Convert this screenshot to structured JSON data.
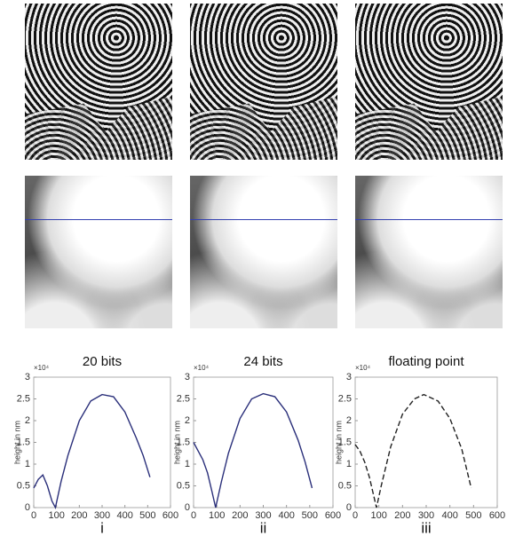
{
  "chart_data": [
    {
      "type": "line",
      "title": "20 bits",
      "caption": "i",
      "ylabel": "height in nm",
      "y_multiplier": "×10⁴",
      "x": [
        0,
        20,
        40,
        60,
        80,
        95,
        120,
        150,
        200,
        250,
        300,
        350,
        400,
        450,
        480,
        510
      ],
      "series": [
        {
          "color": "#2a2f7a",
          "values": [
            0.45,
            0.65,
            0.75,
            0.5,
            0.15,
            0,
            0.6,
            1.2,
            2.0,
            2.45,
            2.6,
            2.55,
            2.2,
            1.6,
            1.2,
            0.7
          ]
        }
      ],
      "xlim": [
        0,
        600
      ],
      "xticks": [
        0,
        100,
        200,
        300,
        400,
        500,
        600
      ],
      "ylim": [
        0,
        3
      ],
      "yticks": [
        0,
        0.5,
        1,
        1.5,
        2,
        2.5,
        3
      ]
    },
    {
      "type": "line",
      "title": "24 bits",
      "caption": "ii",
      "ylabel": "height in nm",
      "y_multiplier": "×10⁴",
      "x": [
        0,
        20,
        40,
        60,
        80,
        95,
        120,
        150,
        200,
        250,
        300,
        350,
        400,
        450,
        480,
        510
      ],
      "series": [
        {
          "color": "#2a2f7a",
          "values": [
            1.5,
            1.3,
            1.1,
            0.8,
            0.35,
            0,
            0.6,
            1.25,
            2.05,
            2.5,
            2.62,
            2.55,
            2.2,
            1.55,
            1.05,
            0.45
          ]
        }
      ],
      "xlim": [
        0,
        600
      ],
      "xticks": [
        0,
        100,
        200,
        300,
        400,
        500,
        600
      ],
      "ylim": [
        0,
        3
      ],
      "yticks": [
        0,
        0.5,
        1,
        1.5,
        2,
        2.5,
        3
      ]
    },
    {
      "type": "line",
      "title": "floating point",
      "caption": "iii",
      "ylabel": "height in nm",
      "y_multiplier": "×10⁴",
      "x": [
        0,
        20,
        40,
        60,
        75,
        90,
        110,
        150,
        200,
        250,
        290,
        350,
        400,
        450,
        490
      ],
      "series": [
        {
          "color": "#222222",
          "line_style": "dashed",
          "values": [
            1.45,
            1.3,
            1.05,
            0.7,
            0.35,
            0,
            0.5,
            1.4,
            2.15,
            2.5,
            2.6,
            2.45,
            2.05,
            1.35,
            0.45
          ]
        }
      ],
      "xlim": [
        0,
        600
      ],
      "xticks": [
        0,
        100,
        200,
        300,
        400,
        500,
        600
      ],
      "ylim": [
        0,
        3
      ],
      "yticks": [
        0,
        0.5,
        1,
        1.5,
        2,
        2.5,
        3
      ]
    }
  ]
}
